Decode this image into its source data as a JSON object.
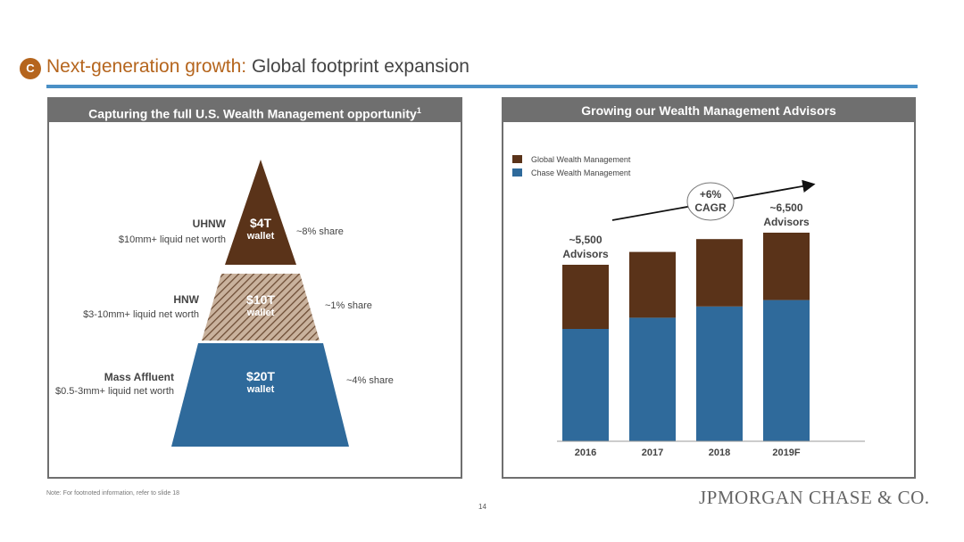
{
  "header": {
    "badge": "C",
    "title_highlight": "Next-generation growth:",
    "title_rest": "Global footprint expansion"
  },
  "left_panel": {
    "title": "Capturing the full U.S. Wealth Management opportunity",
    "title_footnote": "1",
    "segments": [
      {
        "name": "UHNW",
        "desc": "$10mm+ liquid net worth",
        "value": "$4T",
        "unit": "wallet",
        "share": "~8% share",
        "color": "#5a3319"
      },
      {
        "name": "HNW",
        "desc": "$3-10mm+ liquid net worth",
        "value": "$10T",
        "unit": "wallet",
        "share": "~1% share",
        "color": "#a9876e"
      },
      {
        "name": "Mass Affluent",
        "desc": "$0.5-3mm+ liquid net worth",
        "value": "$20T",
        "unit": "wallet",
        "share": "~4% share",
        "color": "#2f6a9b"
      }
    ]
  },
  "right_panel": {
    "title": "Growing our Wealth Management Advisors"
  },
  "chart_data": {
    "type": "bar",
    "title": "Growing our Wealth Management Advisors",
    "categories": [
      "2016",
      "2017",
      "2018",
      "2019F"
    ],
    "series": [
      {
        "name": "Chase Wealth Management",
        "color": "#2f6a9b",
        "values": [
          3500,
          3850,
          4200,
          4400
        ]
      },
      {
        "name": "Global Wealth Management",
        "color": "#5a3319",
        "values": [
          2000,
          2050,
          2100,
          2100
        ]
      }
    ],
    "stacked": true,
    "legend": "top-left",
    "annotations": {
      "first_label": [
        "~5,500",
        "Advisors"
      ],
      "last_label": [
        "~6,500",
        "Advisors"
      ],
      "cagr": [
        "+6%",
        "CAGR"
      ]
    },
    "ylim": [
      0,
      7500
    ],
    "grid": false
  },
  "footer": {
    "note": "Note: For footnoted information, refer to slide 18",
    "page": "14",
    "logo": "JPMORGAN CHASE & CO."
  }
}
